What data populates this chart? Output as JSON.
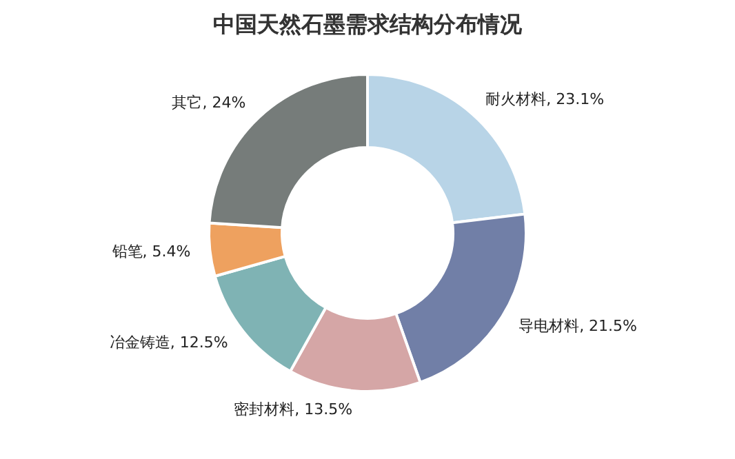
{
  "chart_data": {
    "type": "donut",
    "title": "中国天然石墨需求结构分布情况",
    "categories": [
      "耐火材料",
      "导电材料",
      "密封材料",
      "冶金铸造",
      "铅笔",
      "其它"
    ],
    "values": [
      23.1,
      21.5,
      13.5,
      12.5,
      5.4,
      24
    ],
    "colors": [
      "#b8d4e7",
      "#717fa7",
      "#d5a6a6",
      "#7fb3b4",
      "#eea15f",
      "#767c7a"
    ],
    "value_labels": [
      "23.1%",
      "21.5%",
      "13.5%",
      "12.5%",
      "5.4%",
      "24%"
    ],
    "legend": false
  }
}
